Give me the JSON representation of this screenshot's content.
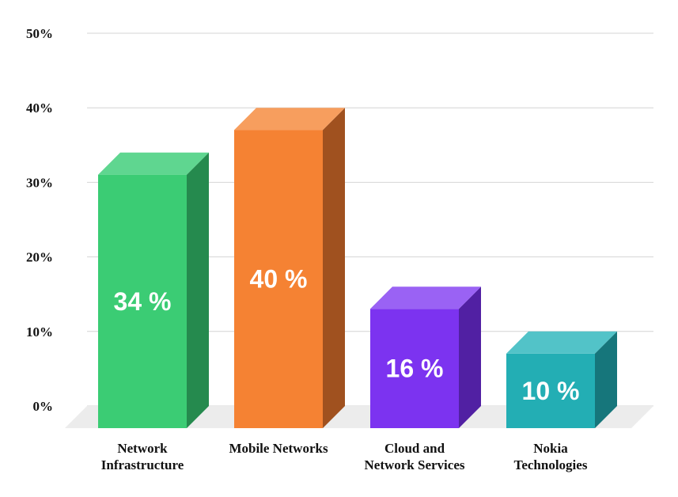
{
  "chart_data": {
    "type": "bar",
    "title": "",
    "xlabel": "",
    "ylabel": "",
    "ylim": [
      0,
      50
    ],
    "yticks": [
      "0%",
      "10%",
      "20%",
      "30%",
      "40%",
      "50%"
    ],
    "grid": true,
    "legend": "none",
    "categories": [
      [
        "Network",
        "Infrastructure"
      ],
      [
        "Mobile Networks"
      ],
      [
        "Cloud and",
        "Network Services"
      ],
      [
        "Nokia",
        "Technologies"
      ]
    ],
    "values": [
      34,
      40,
      16,
      10
    ],
    "data_labels": [
      "34 %",
      "40 %",
      "16 %",
      "10 %"
    ],
    "colors": [
      {
        "front": "#3bcc74",
        "top": "#5fd690",
        "side": "#258a4e"
      },
      {
        "front": "#f58233",
        "top": "#f79e5e",
        "side": "#a0511f"
      },
      {
        "front": "#7c33f0",
        "top": "#9a62f4",
        "side": "#5120a3"
      },
      {
        "front": "#23aeb4",
        "top": "#52c3c8",
        "side": "#16767b"
      }
    ]
  }
}
